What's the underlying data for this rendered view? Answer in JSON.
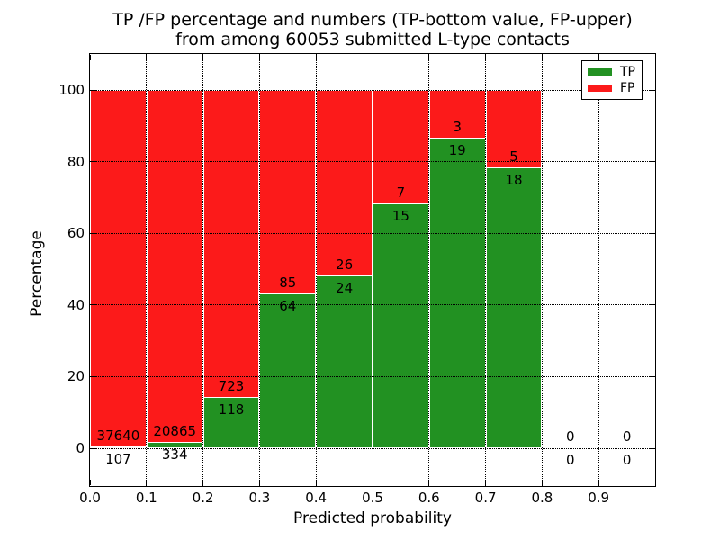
{
  "figure": {
    "title_line1": "TP /FP percentage and numbers (TP-bottom value, FP-upper)",
    "title_line2": "from among 60053 submitted L-type contacts"
  },
  "chart_data": {
    "type": "bar",
    "subtype": "stacked-percentage-histogram",
    "title": "TP /FP percentage and numbers (TP-bottom value, FP-upper) from among 60053 submitted L-type contacts",
    "xlabel": "Predicted probability",
    "ylabel": "Percentage",
    "total_submitted_contacts": 60053,
    "categories": [
      "0.0-0.1",
      "0.1-0.2",
      "0.2-0.3",
      "0.3-0.4",
      "0.4-0.5",
      "0.5-0.6",
      "0.6-0.7",
      "0.7-0.8",
      "0.8-0.9",
      "0.9-1.0"
    ],
    "series": [
      {
        "name": "TP",
        "counts": [
          107,
          334,
          118,
          64,
          24,
          15,
          19,
          18,
          0,
          0
        ],
        "pct": [
          0.28,
          1.58,
          14.03,
          42.95,
          48.0,
          68.18,
          86.36,
          78.26,
          0,
          0
        ]
      },
      {
        "name": "FP",
        "counts": [
          37640,
          20865,
          723,
          85,
          26,
          7,
          3,
          5,
          0,
          0
        ],
        "pct": [
          99.72,
          98.42,
          85.97,
          57.05,
          52.0,
          31.82,
          13.64,
          21.74,
          0,
          0
        ]
      }
    ],
    "x_tick_labels": [
      "0.0",
      "0.1",
      "0.2",
      "0.3",
      "0.4",
      "0.5",
      "0.6",
      "0.7",
      "0.8",
      "0.9"
    ],
    "y_ticks": [
      0,
      20,
      40,
      60,
      80,
      100
    ],
    "xlim": [
      0.0,
      1.0
    ],
    "ylim_display": [
      -10,
      110
    ],
    "grid": "dotted both axes",
    "legend": {
      "position": "upper right",
      "entries": [
        {
          "label": "TP",
          "color": "#229122"
        },
        {
          "label": "FP",
          "color": "#fc1a1a"
        }
      ]
    }
  },
  "colors": {
    "tp": "#229122",
    "fp": "#fc1a1a",
    "grid": "#000000",
    "frame": "#000000",
    "text": "#000000",
    "background": "#ffffff"
  }
}
